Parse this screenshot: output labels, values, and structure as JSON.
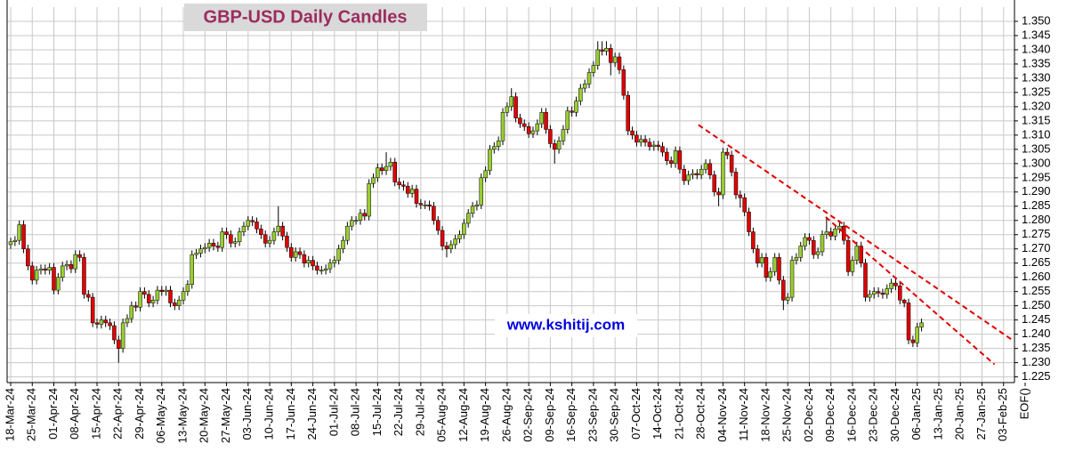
{
  "chart_data": {
    "type": "candlestick",
    "title": "GBP-USD Daily Candles",
    "watermark": "www.kshitij.com",
    "up_color": "#9acd32",
    "down_color": "#e00000",
    "grid": true,
    "ylim": [
      1.223,
      1.355
    ],
    "yticks": [
      {
        "value": 1.225,
        "label": "1.225"
      },
      {
        "value": 1.23,
        "label": "1.230"
      },
      {
        "value": 1.235,
        "label": "1.235"
      },
      {
        "value": 1.24,
        "label": "1.240"
      },
      {
        "value": 1.245,
        "label": "1.245"
      },
      {
        "value": 1.25,
        "label": "1.250"
      },
      {
        "value": 1.255,
        "label": "1.255"
      },
      {
        "value": 1.26,
        "label": "1.260"
      },
      {
        "value": 1.265,
        "label": "1.265"
      },
      {
        "value": 1.27,
        "label": "1.270"
      },
      {
        "value": 1.275,
        "label": "1.275"
      },
      {
        "value": 1.28,
        "label": "1.280"
      },
      {
        "value": 1.285,
        "label": "1.285"
      },
      {
        "value": 1.29,
        "label": "1.290"
      },
      {
        "value": 1.295,
        "label": "1.295"
      },
      {
        "value": 1.3,
        "label": "1.300"
      },
      {
        "value": 1.305,
        "label": "1.305"
      },
      {
        "value": 1.31,
        "label": "1.310"
      },
      {
        "value": 1.315,
        "label": "1.315"
      },
      {
        "value": 1.32,
        "label": "1.320"
      },
      {
        "value": 1.325,
        "label": "1.325"
      },
      {
        "value": 1.33,
        "label": "1.330"
      },
      {
        "value": 1.335,
        "label": "1.335"
      },
      {
        "value": 1.34,
        "label": "1.340"
      },
      {
        "value": 1.345,
        "label": "1.345"
      },
      {
        "value": 1.35,
        "label": "1.350"
      }
    ],
    "categories": [
      "18-Mar-24",
      null,
      null,
      null,
      null,
      "25-Mar-24",
      null,
      null,
      null,
      null,
      "01-Apr-24",
      null,
      null,
      null,
      null,
      "08-Apr-24",
      null,
      null,
      null,
      null,
      "15-Apr-24",
      null,
      null,
      null,
      null,
      "22-Apr-24",
      null,
      null,
      null,
      null,
      "29-Apr-24",
      null,
      null,
      null,
      null,
      "06-May-24",
      null,
      null,
      null,
      null,
      "13-May-24",
      null,
      null,
      null,
      null,
      "20-May-24",
      null,
      null,
      null,
      null,
      "27-May-24",
      null,
      null,
      null,
      null,
      "03-Jun-24",
      null,
      null,
      null,
      null,
      "10-Jun-24",
      null,
      null,
      null,
      null,
      "17-Jun-24",
      null,
      null,
      null,
      null,
      "24-Jun-24",
      null,
      null,
      null,
      null,
      "01-Jul-24",
      null,
      null,
      null,
      null,
      "08-Jul-24",
      null,
      null,
      null,
      null,
      "15-Jul-24",
      null,
      null,
      null,
      null,
      "22-Jul-24",
      null,
      null,
      null,
      null,
      "29-Jul-24",
      null,
      null,
      null,
      null,
      "05-Aug-24",
      null,
      null,
      null,
      null,
      "12-Aug-24",
      null,
      null,
      null,
      null,
      "19-Aug-24",
      null,
      null,
      null,
      null,
      "26-Aug-24",
      null,
      null,
      null,
      null,
      "02-Sep-24",
      null,
      null,
      null,
      null,
      "09-Sep-24",
      null,
      null,
      null,
      null,
      "16-Sep-24",
      null,
      null,
      null,
      null,
      "23-Sep-24",
      null,
      null,
      null,
      null,
      "30-Sep-24",
      null,
      null,
      null,
      null,
      "07-Oct-24",
      null,
      null,
      null,
      null,
      "14-Oct-24",
      null,
      null,
      null,
      null,
      "21-Oct-24",
      null,
      null,
      null,
      null,
      "28-Oct-24",
      null,
      null,
      null,
      null,
      "04-Nov-24",
      null,
      null,
      null,
      null,
      "11-Nov-24",
      null,
      null,
      null,
      null,
      "18-Nov-24",
      null,
      null,
      null,
      null,
      "25-Nov-24",
      null,
      null,
      null,
      null,
      "02-Dec-24",
      null,
      null,
      null,
      null,
      "09-Dec-24",
      null,
      null,
      null,
      null,
      "16-Dec-24",
      null,
      null,
      null,
      null,
      "23-Dec-24",
      null,
      null,
      null,
      null,
      "30-Dec-24",
      null,
      null,
      null,
      null,
      "06-Jan-25",
      null,
      null,
      null,
      null,
      "13-Jan-25",
      null,
      null,
      null,
      null,
      "20-Jan-25",
      null,
      null,
      null,
      null,
      "27-Jan-25",
      null,
      null,
      null,
      null,
      "03-Feb-25",
      null,
      null,
      null,
      null,
      "EOF()"
    ],
    "open": [
      1.2715,
      1.2725,
      1.273,
      1.2785,
      1.27,
      1.264,
      1.259,
      1.2625,
      1.263,
      1.2625,
      1.2635,
      1.2555,
      1.26,
      1.264,
      1.2645,
      1.263,
      1.268,
      1.267,
      1.254,
      1.253,
      1.244,
      1.2435,
      1.245,
      1.244,
      1.243,
      1.238,
      1.235,
      1.244,
      1.2455,
      1.25,
      1.2495,
      1.255,
      1.254,
      1.251,
      1.252,
      1.2555,
      1.255,
      1.2555,
      1.251,
      1.25,
      1.252,
      1.255,
      1.2575,
      1.268,
      1.2685,
      1.27,
      1.2705,
      1.272,
      1.271,
      1.2705,
      1.276,
      1.275,
      1.272,
      1.2725,
      1.276,
      1.278,
      1.28,
      1.2795,
      1.277,
      1.275,
      1.272,
      1.273,
      1.276,
      1.278,
      1.2745,
      1.2705,
      1.267,
      1.269,
      1.268,
      1.265,
      1.266,
      1.264,
      1.2625,
      1.2625,
      1.263,
      1.265,
      1.266,
      1.27,
      1.273,
      1.278,
      1.28,
      1.28,
      1.2825,
      1.2815,
      1.293,
      1.295,
      1.2985,
      1.2975,
      1.299,
      1.3005,
      1.2935,
      1.2925,
      1.292,
      1.2895,
      1.291,
      1.286,
      1.2855,
      1.2855,
      1.285,
      1.28,
      1.2765,
      1.271,
      1.27,
      1.2715,
      1.2735,
      1.275,
      1.279,
      1.2825,
      1.285,
      1.2855,
      1.295,
      1.2975,
      1.305,
      1.306,
      1.308,
      1.318,
      1.32,
      1.3235,
      1.316,
      1.314,
      1.313,
      1.3105,
      1.3115,
      1.314,
      1.318,
      1.312,
      1.307,
      1.305,
      1.308,
      1.312,
      1.3185,
      1.318,
      1.322,
      1.3265,
      1.328,
      1.332,
      1.3345,
      1.34,
      1.3395,
      1.3405,
      1.3355,
      1.3375,
      1.333,
      1.324,
      1.3115,
      1.31,
      1.3075,
      1.3085,
      1.3075,
      1.306,
      1.3065,
      1.306,
      1.304,
      1.301,
      1.3,
      1.3045,
      1.298,
      1.294,
      1.296,
      1.2965,
      1.296,
      1.298,
      1.3,
      1.296,
      1.29,
      1.289,
      1.304,
      1.303,
      1.297,
      1.289,
      1.288,
      1.283,
      1.276,
      1.27,
      1.265,
      1.267,
      1.26,
      1.262,
      1.267,
      1.259,
      1.252,
      1.253,
      1.266,
      1.267,
      1.271,
      1.274,
      1.273,
      1.268,
      1.269,
      1.275,
      1.276,
      1.2745,
      1.277,
      1.278,
      1.273,
      1.262,
      1.266,
      1.271,
      1.265,
      1.253,
      1.254,
      1.255,
      1.2545,
      1.254,
      1.256,
      1.258,
      1.257,
      1.252,
      1.251,
      1.238,
      1.237,
      1.2425,
      null,
      null,
      null,
      null,
      null,
      null,
      null,
      null,
      null,
      null,
      null,
      null,
      null,
      null,
      null,
      null,
      null,
      null,
      null,
      null,
      null,
      null,
      null,
      null
    ],
    "high": [
      1.274,
      1.2745,
      1.28,
      1.28,
      1.2715,
      1.2655,
      1.264,
      1.2645,
      1.2645,
      1.265,
      1.265,
      1.2615,
      1.2655,
      1.266,
      1.266,
      1.2695,
      1.2695,
      1.2685,
      1.2555,
      1.2545,
      1.2455,
      1.2465,
      1.2465,
      1.2455,
      1.2445,
      1.2395,
      1.2455,
      1.247,
      1.2515,
      1.2515,
      1.2565,
      1.2565,
      1.2555,
      1.2535,
      1.257,
      1.257,
      1.257,
      1.257,
      1.2525,
      1.2535,
      1.2565,
      1.259,
      1.2695,
      1.27,
      1.2715,
      1.272,
      1.2735,
      1.2735,
      1.2725,
      1.2775,
      1.2775,
      1.2765,
      1.274,
      1.2775,
      1.2795,
      1.2815,
      1.2815,
      1.281,
      1.2785,
      1.2765,
      1.2745,
      1.2775,
      1.285,
      1.2795,
      1.276,
      1.272,
      1.2705,
      1.2705,
      1.2695,
      1.2675,
      1.2675,
      1.2655,
      1.264,
      1.2645,
      1.2665,
      1.2675,
      1.2715,
      1.2745,
      1.2795,
      1.2815,
      1.2815,
      1.284,
      1.284,
      1.2945,
      1.2965,
      1.3,
      1.3,
      1.304,
      1.302,
      1.302,
      1.295,
      1.294,
      1.2935,
      1.2925,
      1.2925,
      1.2875,
      1.287,
      1.287,
      1.2865,
      1.2815,
      1.278,
      1.2725,
      1.273,
      1.275,
      1.2765,
      1.2805,
      1.284,
      1.2865,
      1.287,
      1.2965,
      1.299,
      1.3065,
      1.3075,
      1.3095,
      1.3195,
      1.3215,
      1.3265,
      1.325,
      1.3175,
      1.3155,
      1.3145,
      1.313,
      1.3155,
      1.3195,
      1.3195,
      1.3135,
      1.3085,
      1.3095,
      1.3135,
      1.32,
      1.32,
      1.3235,
      1.328,
      1.3295,
      1.3335,
      1.336,
      1.343,
      1.343,
      1.343,
      1.342,
      1.339,
      1.339,
      1.3345,
      1.3255,
      1.313,
      1.3115,
      1.31,
      1.31,
      1.309,
      1.308,
      1.308,
      1.3075,
      1.3055,
      1.3025,
      1.306,
      1.306,
      1.2995,
      1.2975,
      1.298,
      1.298,
      1.2995,
      1.3015,
      1.3015,
      1.2975,
      1.2915,
      1.3055,
      1.3055,
      1.3045,
      1.2985,
      1.2905,
      1.2895,
      1.2845,
      1.2775,
      1.2715,
      1.2685,
      1.2685,
      1.2635,
      1.2685,
      1.2685,
      1.2605,
      1.2545,
      1.2675,
      1.2685,
      1.2725,
      1.2755,
      1.2755,
      1.2745,
      1.2705,
      1.2765,
      1.281,
      1.2775,
      1.2785,
      1.2795,
      1.2795,
      1.2745,
      1.2675,
      1.2725,
      1.2725,
      1.2665,
      1.2555,
      1.2565,
      1.2565,
      1.256,
      1.2575,
      1.2595,
      1.2595,
      1.2585,
      1.2525,
      1.2525,
      1.2395,
      1.244,
      1.2455,
      null,
      null,
      null,
      null,
      null,
      null,
      null,
      null,
      null,
      null,
      null,
      null,
      null,
      null,
      null,
      null,
      null,
      null,
      null,
      null,
      null,
      null,
      null,
      null
    ],
    "low": [
      1.27,
      1.271,
      1.2715,
      1.2685,
      1.2625,
      1.2575,
      1.2575,
      1.261,
      1.261,
      1.261,
      1.254,
      1.254,
      1.2585,
      1.2625,
      1.2615,
      1.2615,
      1.2655,
      1.2525,
      1.2515,
      1.2425,
      1.242,
      1.242,
      1.2425,
      1.2415,
      1.2365,
      1.23,
      1.2335,
      1.2425,
      1.244,
      1.248,
      1.248,
      1.2525,
      1.2495,
      1.2495,
      1.2505,
      1.2535,
      1.2535,
      1.2495,
      1.2485,
      1.2485,
      1.2505,
      1.2535,
      1.256,
      1.2665,
      1.267,
      1.2685,
      1.269,
      1.2695,
      1.269,
      1.269,
      1.2735,
      1.2705,
      1.2705,
      1.271,
      1.2745,
      1.2765,
      1.278,
      1.2755,
      1.2735,
      1.2705,
      1.2705,
      1.2715,
      1.2745,
      1.273,
      1.269,
      1.2655,
      1.2655,
      1.2665,
      1.2635,
      1.2635,
      1.2625,
      1.261,
      1.261,
      1.261,
      1.2615,
      1.2635,
      1.2645,
      1.2685,
      1.2715,
      1.2765,
      1.2785,
      1.2785,
      1.28,
      1.28,
      1.2915,
      1.2935,
      1.296,
      1.296,
      1.2975,
      1.292,
      1.291,
      1.2905,
      1.288,
      1.288,
      1.2845,
      1.284,
      1.284,
      1.2835,
      1.2785,
      1.275,
      1.2695,
      1.267,
      1.2685,
      1.27,
      1.272,
      1.2735,
      1.2775,
      1.281,
      1.2835,
      1.284,
      1.2935,
      1.296,
      1.3035,
      1.3045,
      1.3065,
      1.3165,
      1.3185,
      1.3145,
      1.3125,
      1.3115,
      1.309,
      1.309,
      1.31,
      1.3125,
      1.3105,
      1.3055,
      1.3,
      1.3035,
      1.3065,
      1.3105,
      1.3165,
      1.3165,
      1.3205,
      1.325,
      1.3265,
      1.3305,
      1.333,
      1.338,
      1.338,
      1.331,
      1.334,
      1.3315,
      1.3225,
      1.31,
      1.3085,
      1.306,
      1.306,
      1.306,
      1.3045,
      1.3045,
      1.3045,
      1.3025,
      1.2995,
      1.2985,
      1.2985,
      1.2965,
      1.2925,
      1.2925,
      1.2945,
      1.2945,
      1.2945,
      1.2965,
      1.2945,
      1.2885,
      1.285,
      1.2875,
      1.3015,
      1.2955,
      1.2875,
      1.2845,
      1.2815,
      1.2745,
      1.2685,
      1.2635,
      1.2635,
      1.2585,
      1.2585,
      1.2605,
      1.2575,
      1.2485,
      1.2505,
      1.2515,
      1.2645,
      1.2655,
      1.2695,
      1.2715,
      1.2665,
      1.2665,
      1.2675,
      1.2735,
      1.273,
      1.273,
      1.2755,
      1.2715,
      1.2605,
      1.2605,
      1.2645,
      1.2635,
      1.2515,
      1.2515,
      1.2525,
      1.253,
      1.2525,
      1.2525,
      1.2545,
      1.2555,
      1.2505,
      1.2495,
      1.2365,
      1.2355,
      1.2355,
      1.241,
      null,
      null,
      null,
      null,
      null,
      null,
      null,
      null,
      null,
      null,
      null,
      null,
      null,
      null,
      null,
      null,
      null,
      null,
      null,
      null,
      null,
      null,
      null,
      null
    ],
    "close": [
      1.2725,
      1.273,
      1.2785,
      1.27,
      1.264,
      1.259,
      1.2625,
      1.263,
      1.2625,
      1.2635,
      1.2555,
      1.26,
      1.264,
      1.2645,
      1.263,
      1.268,
      1.267,
      1.254,
      1.253,
      1.244,
      1.2435,
      1.245,
      1.244,
      1.243,
      1.238,
      1.235,
      1.244,
      1.2455,
      1.25,
      1.2495,
      1.255,
      1.254,
      1.251,
      1.252,
      1.2555,
      1.255,
      1.2555,
      1.251,
      1.25,
      1.252,
      1.255,
      1.2575,
      1.268,
      1.2685,
      1.27,
      1.2705,
      1.272,
      1.271,
      1.2705,
      1.276,
      1.275,
      1.272,
      1.2725,
      1.276,
      1.278,
      1.28,
      1.2795,
      1.277,
      1.275,
      1.272,
      1.273,
      1.276,
      1.278,
      1.2745,
      1.2705,
      1.267,
      1.269,
      1.268,
      1.265,
      1.266,
      1.264,
      1.2625,
      1.2625,
      1.263,
      1.265,
      1.266,
      1.27,
      1.273,
      1.278,
      1.28,
      1.28,
      1.2825,
      1.2815,
      1.293,
      1.295,
      1.2985,
      1.2975,
      1.299,
      1.3005,
      1.2935,
      1.2925,
      1.292,
      1.2895,
      1.291,
      1.286,
      1.2855,
      1.2855,
      1.285,
      1.28,
      1.2765,
      1.271,
      1.27,
      1.2715,
      1.2735,
      1.275,
      1.279,
      1.2825,
      1.285,
      1.2855,
      1.295,
      1.2975,
      1.305,
      1.306,
      1.308,
      1.318,
      1.32,
      1.3235,
      1.316,
      1.314,
      1.313,
      1.3105,
      1.3115,
      1.314,
      1.318,
      1.312,
      1.307,
      1.305,
      1.308,
      1.312,
      1.3185,
      1.318,
      1.322,
      1.3265,
      1.328,
      1.332,
      1.3345,
      1.34,
      1.3395,
      1.3405,
      1.3355,
      1.3375,
      1.333,
      1.324,
      1.3115,
      1.31,
      1.3075,
      1.3085,
      1.3075,
      1.306,
      1.3065,
      1.306,
      1.304,
      1.301,
      1.3,
      1.3045,
      1.298,
      1.294,
      1.296,
      1.2965,
      1.296,
      1.298,
      1.3,
      1.296,
      1.29,
      1.289,
      1.304,
      1.303,
      1.297,
      1.289,
      1.288,
      1.283,
      1.276,
      1.27,
      1.265,
      1.267,
      1.26,
      1.262,
      1.267,
      1.259,
      1.252,
      1.253,
      1.266,
      1.267,
      1.271,
      1.274,
      1.273,
      1.268,
      1.269,
      1.275,
      1.276,
      1.2745,
      1.277,
      1.278,
      1.273,
      1.262,
      1.266,
      1.271,
      1.265,
      1.253,
      1.254,
      1.255,
      1.2545,
      1.254,
      1.256,
      1.258,
      1.257,
      1.252,
      1.251,
      1.238,
      1.237,
      1.2425,
      1.244,
      null,
      null,
      null,
      null,
      null,
      null,
      null,
      null,
      null,
      null,
      null,
      null,
      null,
      null,
      null,
      null,
      null,
      null,
      null,
      null,
      null,
      null,
      null,
      null
    ],
    "trendlines": [
      {
        "color": "#e00000",
        "x": [
          159.3,
          232.1
        ],
        "y": [
          1.3136,
          1.2379
        ]
      },
      {
        "color": "#e00000",
        "x": [
          188.8,
          227.9
        ],
        "y": [
          1.2812,
          1.2294
        ]
      }
    ]
  }
}
